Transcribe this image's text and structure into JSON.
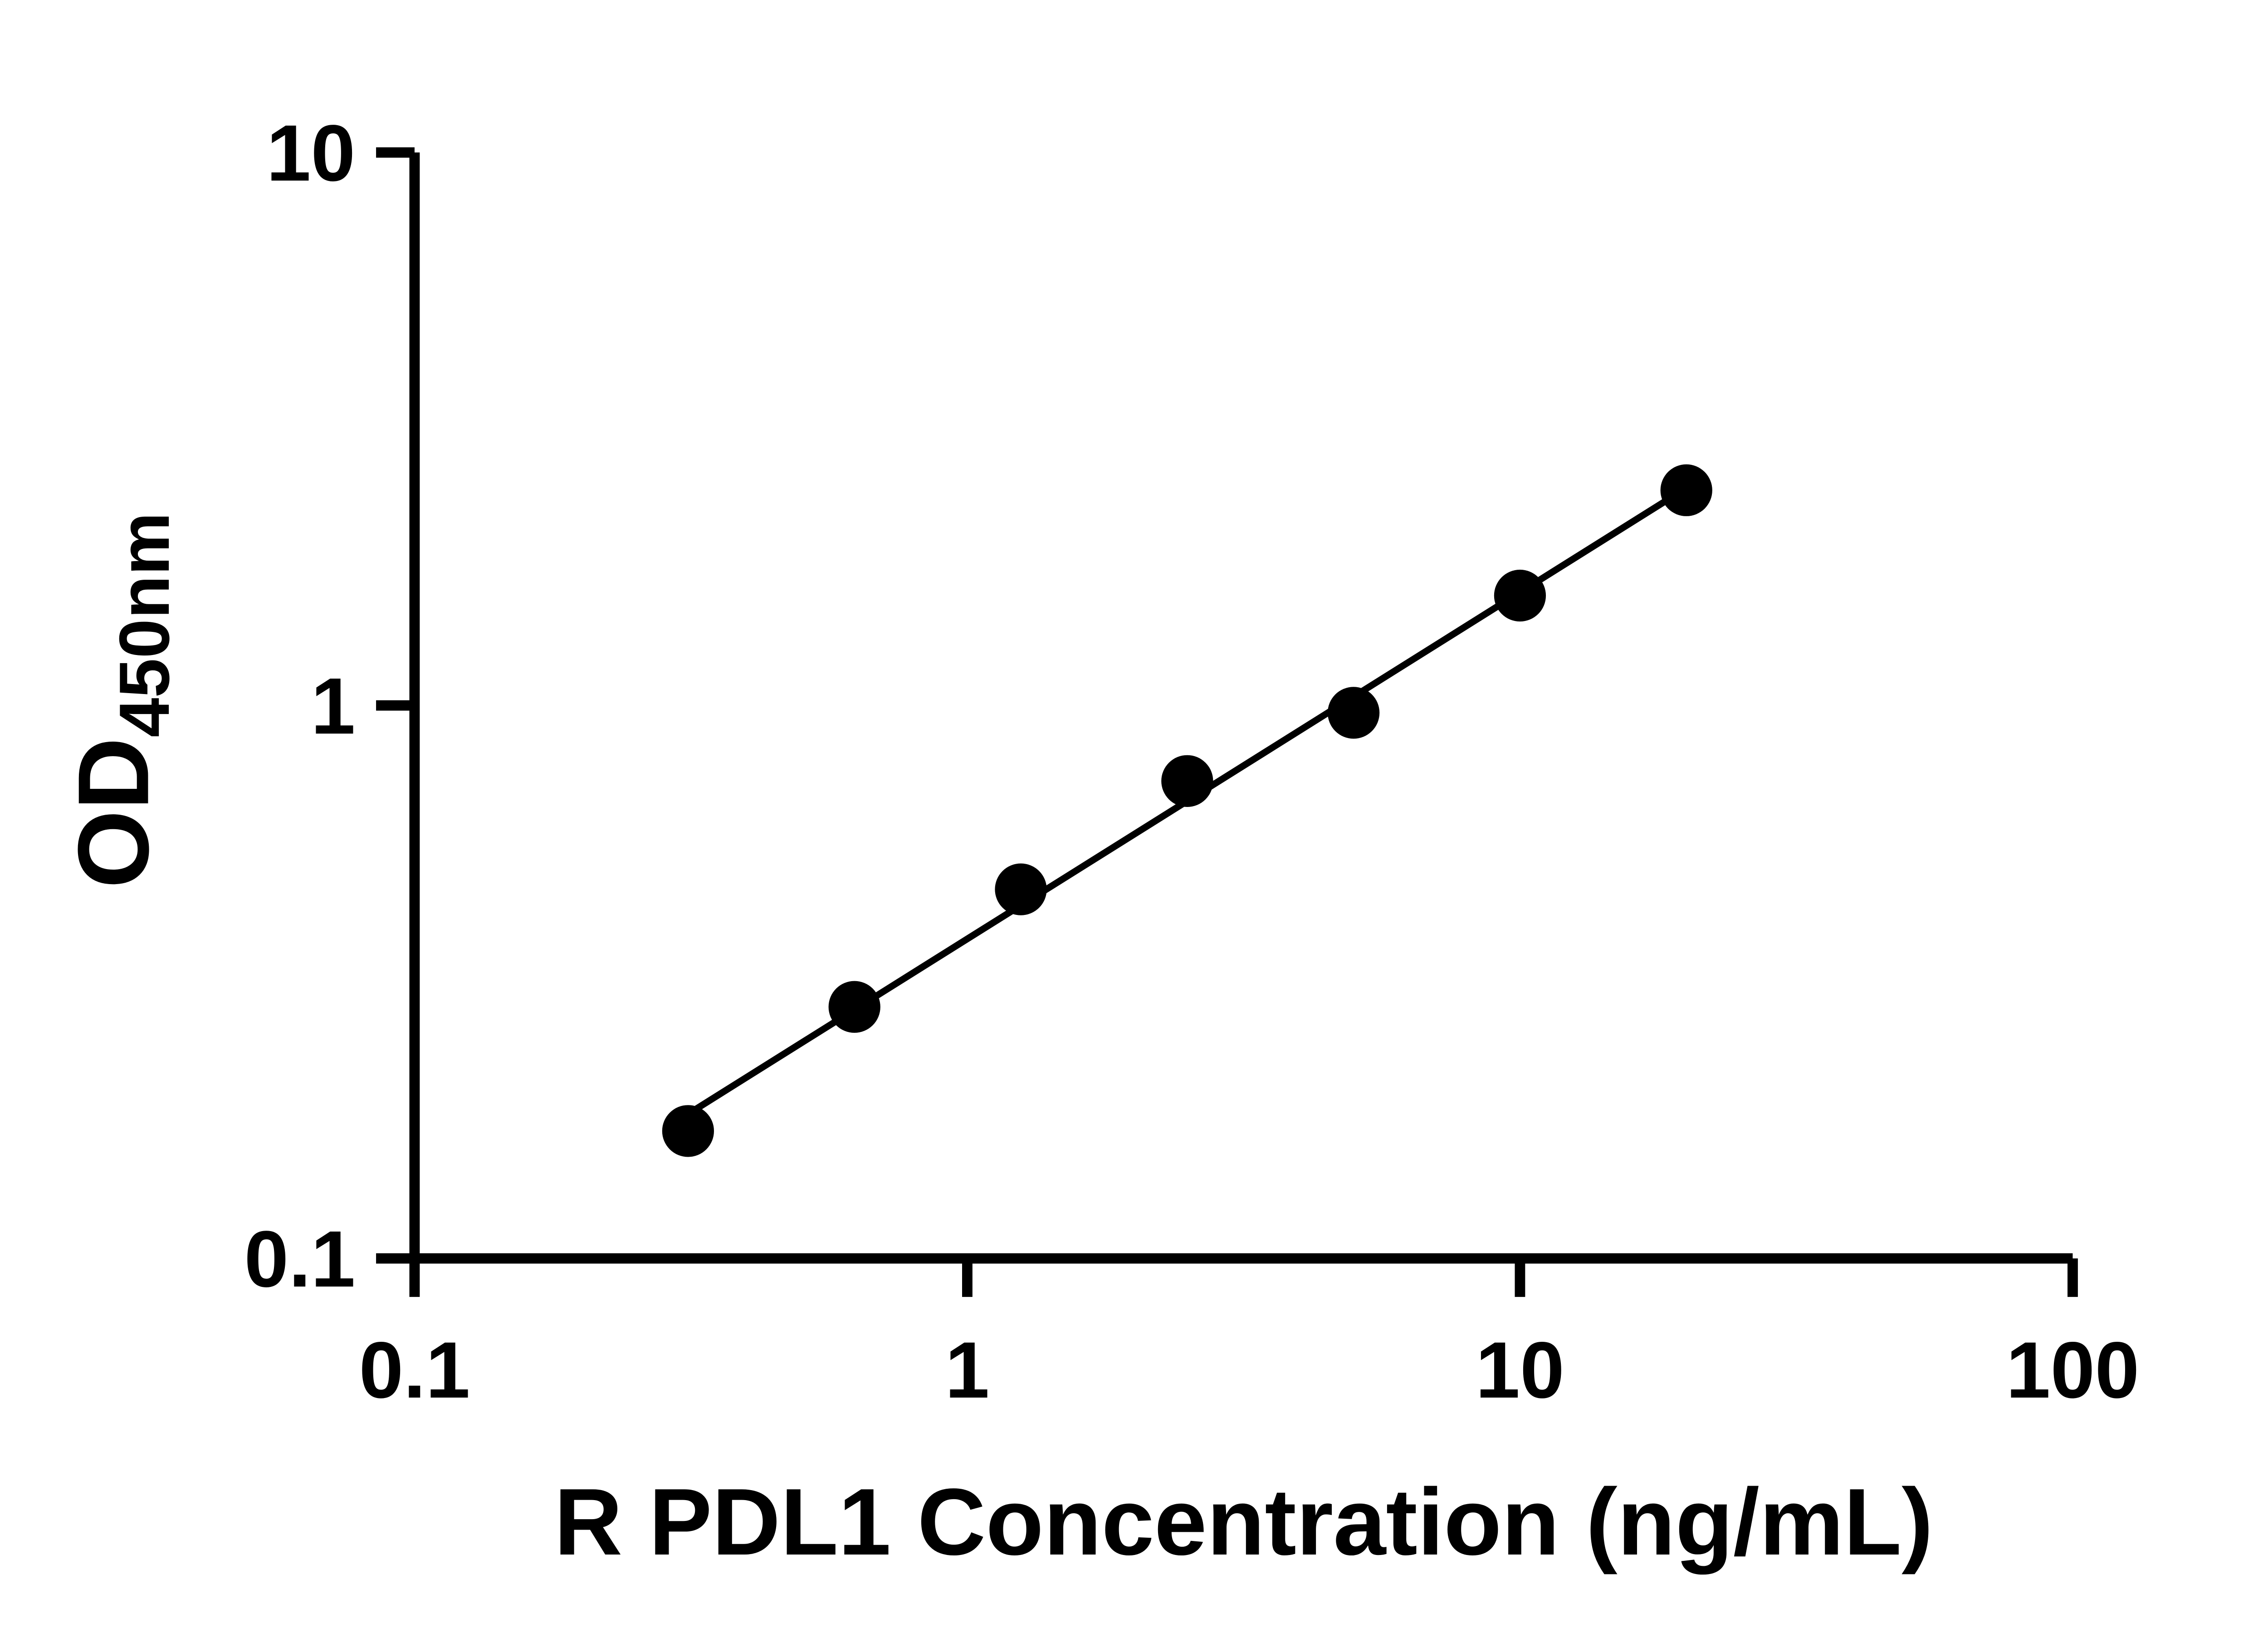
{
  "chart_data": {
    "type": "scatter",
    "title": "",
    "xlabel": "R PDL1 Concentration (ng/mL)",
    "ylabel_main": "OD",
    "ylabel_sub": "450nm",
    "x_scale": "log",
    "y_scale": "log",
    "xlim": [
      0.1,
      100
    ],
    "ylim": [
      0.1,
      10
    ],
    "x_ticks": [
      0.1,
      1,
      10,
      100
    ],
    "x_tick_labels": [
      "0.1",
      "1",
      "10",
      "100"
    ],
    "y_ticks": [
      0.1,
      1,
      10
    ],
    "y_tick_labels": [
      "0.1",
      "1",
      "10"
    ],
    "grid": false,
    "legend": false,
    "x": [
      0.3125,
      0.625,
      1.25,
      2.5,
      5,
      10,
      20
    ],
    "y": [
      0.17,
      0.285,
      0.465,
      0.73,
      0.97,
      1.58,
      2.45
    ],
    "trend_line": true,
    "marker_color": "#000000",
    "line_color": "#000000",
    "axis_color": "#000000",
    "background_color": "#ffffff"
  }
}
